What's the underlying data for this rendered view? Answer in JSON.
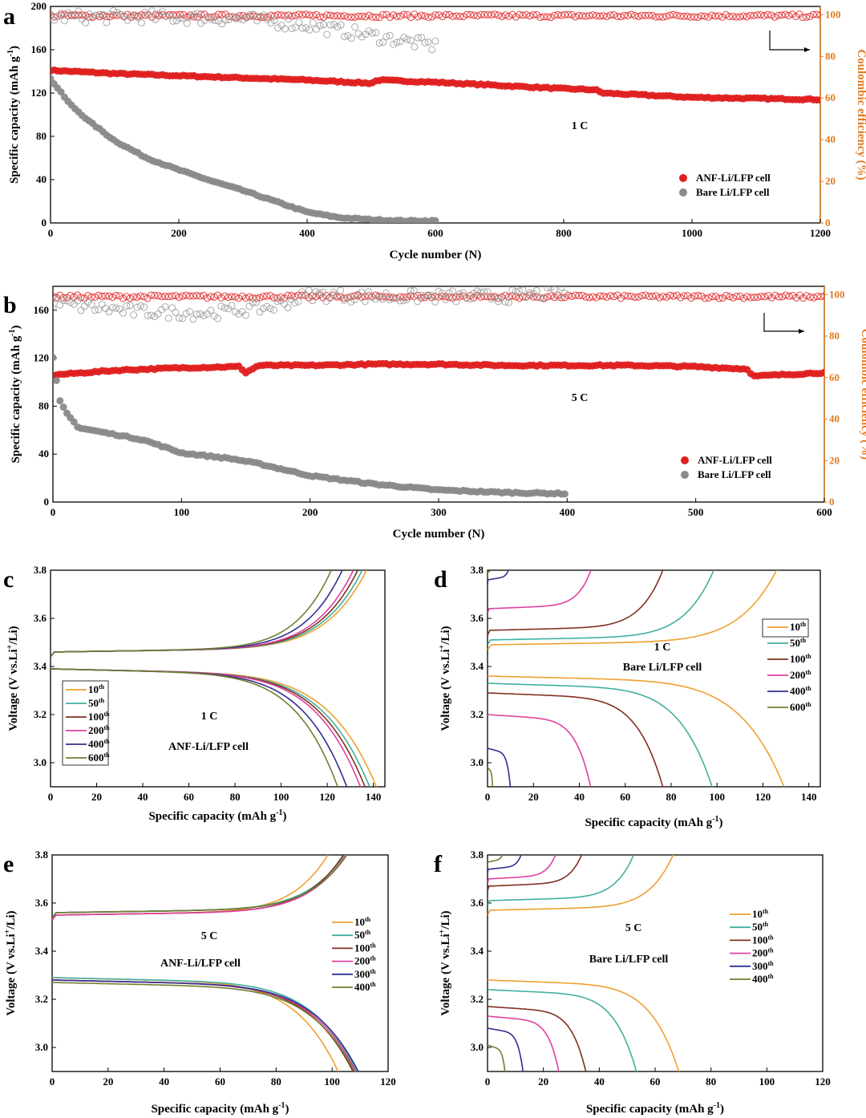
{
  "chart_data": [
    {
      "id": "a",
      "type": "scatter",
      "panel_label": "a",
      "xlabel": "Cycle number (N)",
      "ylabel": "Specific capacity (mAh g-1)",
      "ylabel_parts": [
        "Specific capacity (mAh g",
        "-1",
        ")"
      ],
      "y2label": "Coulombic efficiency (%)",
      "xlim": [
        0,
        1200
      ],
      "ylim": [
        0,
        200
      ],
      "y2lim": [
        0,
        104
      ],
      "xticks": [
        0,
        200,
        400,
        600,
        800,
        1000,
        1200
      ],
      "yticks": [
        0,
        40,
        80,
        120,
        160,
        200
      ],
      "y2ticks": [
        0,
        20,
        40,
        60,
        80,
        100
      ],
      "annotation": "1 C",
      "legend": [
        "ANF-Li/LFP cell",
        "Bare Li/LFP cell"
      ],
      "series": [
        {
          "name": "ANF-Li/LFP cell",
          "axis": "left",
          "color": "#e02020",
          "x": [
            0,
            100,
            200,
            300,
            400,
            500,
            510,
            600,
            700,
            800,
            850,
            860,
            1000,
            1100,
            1200
          ],
          "values": [
            141,
            138,
            136,
            134,
            132,
            129,
            132,
            130,
            127,
            124,
            123,
            120,
            116,
            115,
            114
          ]
        },
        {
          "name": "Bare Li/LFP cell",
          "axis": "left",
          "color": "#8a8a8a",
          "x": [
            0,
            30,
            60,
            100,
            150,
            200,
            250,
            300,
            350,
            400,
            450,
            500,
            550,
            600
          ],
          "values": [
            133,
            110,
            94,
            76,
            60,
            49,
            39,
            30,
            20,
            10,
            5,
            3,
            2,
            2
          ]
        },
        {
          "name": "ANF-Li/LFP cell CE",
          "axis": "right",
          "color": "#e02020",
          "hollow": true,
          "x": [
            0,
            1200
          ],
          "values": [
            99.5,
            99.5
          ]
        },
        {
          "name": "Bare Li/LFP cell CE",
          "axis": "right",
          "color": "#9a9a9a",
          "hollow": true,
          "x": [
            0,
            150,
            300,
            400,
            500,
            600
          ],
          "values": [
            99,
            99,
            98,
            95,
            90,
            85
          ]
        }
      ]
    },
    {
      "id": "b",
      "type": "scatter",
      "panel_label": "b",
      "xlabel": "Cycle number (N)",
      "ylabel": "Specific capacity (mAh g-1)",
      "ylabel_parts": [
        "Specific capacity (mAh g",
        "-1",
        ")"
      ],
      "y2label": "Coulombic efficiency (%)",
      "xlim": [
        0,
        600
      ],
      "ylim": [
        0,
        180
      ],
      "y2lim": [
        0,
        104
      ],
      "xticks": [
        0,
        100,
        200,
        300,
        400,
        500,
        600
      ],
      "yticks": [
        0,
        40,
        80,
        120,
        160
      ],
      "y2ticks": [
        0,
        20,
        40,
        60,
        80,
        100
      ],
      "annotation": "5 C",
      "legend": [
        "ANF-Li/LFP cell",
        "Bare Li/LFP cell"
      ],
      "series": [
        {
          "name": "ANF-Li/LFP cell",
          "axis": "left",
          "color": "#e02020",
          "x": [
            0,
            50,
            100,
            145,
            150,
            160,
            200,
            250,
            300,
            350,
            400,
            450,
            500,
            540,
            545,
            600
          ],
          "values": [
            106,
            110,
            112,
            113,
            108,
            114,
            114,
            115,
            115,
            114,
            114,
            114,
            113,
            111,
            105,
            108
          ]
        },
        {
          "name": "Bare Li/LFP cell",
          "axis": "left",
          "color": "#8a8a8a",
          "x": [
            0,
            5,
            10,
            20,
            50,
            70,
            100,
            140,
            160,
            200,
            250,
            300,
            350,
            400
          ],
          "values": [
            120,
            85,
            75,
            62,
            56,
            52,
            41,
            36,
            32,
            22,
            15,
            10,
            8,
            7
          ]
        },
        {
          "name": "ANF-Li/LFP cell CE",
          "axis": "right",
          "color": "#e02020",
          "hollow": true,
          "x": [
            0,
            600
          ],
          "values": [
            99,
            99
          ]
        },
        {
          "name": "Bare Li/LFP cell CE",
          "axis": "right",
          "color": "#9a9a9a",
          "hollow": true,
          "x": [
            0,
            60,
            120,
            170,
            200,
            250,
            300,
            350,
            400
          ],
          "values": [
            96,
            92,
            91,
            94,
            100,
            99,
            99,
            99,
            101
          ]
        }
      ]
    },
    {
      "id": "c",
      "type": "line",
      "panel_label": "c",
      "xlabel": "Specific capacity (mAh g-1)",
      "xlabel_parts": [
        "Specific capacity (mAh g",
        "-1",
        ")"
      ],
      "ylabel": "Voltage (V vs.Li+/Li)",
      "ylabel_parts": [
        "Voltage (V vs.Li",
        "+",
        "/Li)"
      ],
      "xlim": [
        0,
        145
      ],
      "ylim": [
        2.9,
        3.8
      ],
      "xticks": [
        0,
        20,
        40,
        60,
        80,
        100,
        120,
        140
      ],
      "yticks": [
        3.0,
        3.2,
        3.4,
        3.6,
        3.8
      ],
      "annotations": [
        "1 C",
        "ANF-Li/LFP cell"
      ],
      "legend": [
        [
          "10",
          "th"
        ],
        [
          "50",
          "th"
        ],
        [
          "100",
          "th"
        ],
        [
          "200",
          "th"
        ],
        [
          "400",
          "th"
        ],
        [
          "600",
          "th"
        ]
      ],
      "series": [
        {
          "name": "10th",
          "color": "#f0a030",
          "charge_end": 143,
          "discharge_end": 143,
          "charge_plateau": 3.46,
          "discharge_plateau": 3.39
        },
        {
          "name": "50th",
          "color": "#40b0a0",
          "charge_end": 141,
          "discharge_end": 140,
          "charge_plateau": 3.46,
          "discharge_plateau": 3.39
        },
        {
          "name": "100th",
          "color": "#803020",
          "charge_end": 139,
          "discharge_end": 138,
          "charge_plateau": 3.46,
          "discharge_plateau": 3.39
        },
        {
          "name": "200th",
          "color": "#e040a0",
          "charge_end": 137,
          "discharge_end": 136,
          "charge_plateau": 3.46,
          "discharge_plateau": 3.39
        },
        {
          "name": "400th",
          "color": "#303090",
          "charge_end": 132,
          "discharge_end": 130,
          "charge_plateau": 3.46,
          "discharge_plateau": 3.39
        },
        {
          "name": "600th",
          "color": "#708030",
          "charge_end": 127,
          "discharge_end": 126,
          "charge_plateau": 3.46,
          "discharge_plateau": 3.39
        }
      ]
    },
    {
      "id": "d",
      "type": "line",
      "panel_label": "d",
      "xlabel": "Specific capacity (mAh g-1)",
      "xlabel_parts": [
        "Specific capacity (mAh g",
        "-1",
        ")"
      ],
      "ylabel": "Voltage (V vs.Li+/Li)",
      "ylabel_parts": [
        "Voltage (V vs.Li",
        "+",
        "/Li)"
      ],
      "xlim": [
        0,
        145
      ],
      "ylim": [
        2.9,
        3.8
      ],
      "xticks": [
        0,
        20,
        40,
        60,
        80,
        100,
        120,
        140
      ],
      "yticks": [
        3.0,
        3.2,
        3.4,
        3.6,
        3.8
      ],
      "annotations": [
        "1 C",
        "Bare Li/LFP cell"
      ],
      "legend": [
        [
          "10",
          "th"
        ],
        [
          "50",
          "th"
        ],
        [
          "100",
          "th"
        ],
        [
          "200",
          "th"
        ],
        [
          "400",
          "th"
        ],
        [
          "600",
          "th"
        ]
      ],
      "series": [
        {
          "name": "10th",
          "color": "#f0a030",
          "charge_end": 133,
          "discharge_end": 132,
          "charge_plateau": 3.49,
          "discharge_plateau": 3.36
        },
        {
          "name": "50th",
          "color": "#40b0a0",
          "charge_end": 105,
          "discharge_end": 101,
          "charge_plateau": 3.51,
          "discharge_plateau": 3.33
        },
        {
          "name": "100th",
          "color": "#803020",
          "charge_end": 83,
          "discharge_end": 80,
          "charge_plateau": 3.55,
          "discharge_plateau": 3.29
        },
        {
          "name": "200th",
          "color": "#e040a0",
          "charge_end": 52,
          "discharge_end": 49,
          "charge_plateau": 3.64,
          "discharge_plateau": 3.2
        },
        {
          "name": "400th",
          "color": "#303090",
          "charge_end": 13,
          "discharge_end": 12,
          "charge_plateau": 3.76,
          "discharge_plateau": 3.06
        },
        {
          "name": "600th",
          "color": "#708030",
          "charge_end": 3,
          "discharge_end": 3,
          "charge_plateau": 3.79,
          "discharge_plateau": 2.98
        }
      ]
    },
    {
      "id": "e",
      "type": "line",
      "panel_label": "e",
      "xlabel": "Specific capacity (mAh g-1)",
      "xlabel_parts": [
        "Specific capacity (mAh g",
        "-1",
        ")"
      ],
      "ylabel": "Voltage (V vs.Li+/Li)",
      "ylabel_parts": [
        "Voltage (V vs.Li",
        "+",
        "/Li)"
      ],
      "xlim": [
        0,
        120
      ],
      "ylim": [
        2.9,
        3.8
      ],
      "xticks": [
        0,
        20,
        40,
        60,
        80,
        100,
        120
      ],
      "yticks": [
        3.0,
        3.2,
        3.4,
        3.6,
        3.8
      ],
      "annotations": [
        "5 C",
        "ANF-Li/LFP cell"
      ],
      "legend": [
        [
          "10",
          "th"
        ],
        [
          "50",
          "th"
        ],
        [
          "100",
          "th"
        ],
        [
          "200",
          "th"
        ],
        [
          "300",
          "th"
        ],
        [
          "400",
          "th"
        ]
      ],
      "series": [
        {
          "name": "10th",
          "color": "#f0a030",
          "charge_end": 107,
          "discharge_end": 107,
          "charge_plateau": 3.55,
          "discharge_plateau": 3.29
        },
        {
          "name": "50th",
          "color": "#40b0a0",
          "charge_end": 114,
          "discharge_end": 114,
          "charge_plateau": 3.56,
          "discharge_plateau": 3.29
        },
        {
          "name": "100th",
          "color": "#803020",
          "charge_end": 113,
          "discharge_end": 113,
          "charge_plateau": 3.55,
          "discharge_plateau": 3.28
        },
        {
          "name": "200th",
          "color": "#e040a0",
          "charge_end": 114,
          "discharge_end": 114,
          "charge_plateau": 3.55,
          "discharge_plateau": 3.28
        },
        {
          "name": "300th",
          "color": "#303090",
          "charge_end": 115,
          "discharge_end": 115,
          "charge_plateau": 3.56,
          "discharge_plateau": 3.28
        },
        {
          "name": "400th",
          "color": "#708030",
          "charge_end": 115,
          "discharge_end": 114,
          "charge_plateau": 3.56,
          "discharge_plateau": 3.27
        }
      ]
    },
    {
      "id": "f",
      "type": "line",
      "panel_label": "f",
      "xlabel": "Specific capacity (mAh g-1)",
      "xlabel_parts": [
        "Specific capacity (mAh g",
        "-1",
        ")"
      ],
      "ylabel": "Voltage (V vs.Li+/Li)",
      "ylabel_parts": [
        "Voltage (V vs.Li",
        "+",
        "/Li)"
      ],
      "xlim": [
        0,
        120
      ],
      "ylim": [
        2.9,
        3.8
      ],
      "xticks": [
        0,
        20,
        40,
        60,
        80,
        100,
        120
      ],
      "yticks": [
        3.0,
        3.2,
        3.4,
        3.6,
        3.8
      ],
      "annotations": [
        "5 C",
        "Bare Li/LFP cell"
      ],
      "legend": [
        [
          "10",
          "th"
        ],
        [
          "50",
          "th"
        ],
        [
          "100",
          "th"
        ],
        [
          "200",
          "th"
        ],
        [
          "300",
          "th"
        ],
        [
          "400",
          "th"
        ]
      ],
      "series": [
        {
          "name": "10th",
          "color": "#f0a030",
          "charge_end": 73,
          "discharge_end": 72,
          "charge_plateau": 3.57,
          "discharge_plateau": 3.28
        },
        {
          "name": "50th",
          "color": "#40b0a0",
          "charge_end": 59,
          "discharge_end": 57,
          "charge_plateau": 3.61,
          "discharge_plateau": 3.24
        },
        {
          "name": "100th",
          "color": "#803020",
          "charge_end": 40,
          "discharge_end": 39,
          "charge_plateau": 3.67,
          "discharge_plateau": 3.17
        },
        {
          "name": "200th",
          "color": "#e040a0",
          "charge_end": 30,
          "discharge_end": 29,
          "charge_plateau": 3.7,
          "discharge_plateau": 3.13
        },
        {
          "name": "300th",
          "color": "#303090",
          "charge_end": 16,
          "discharge_end": 15,
          "charge_plateau": 3.74,
          "discharge_plateau": 3.08
        },
        {
          "name": "400th",
          "color": "#708030",
          "charge_end": 8,
          "discharge_end": 8,
          "charge_plateau": 3.77,
          "discharge_plateau": 3.01
        }
      ]
    }
  ]
}
